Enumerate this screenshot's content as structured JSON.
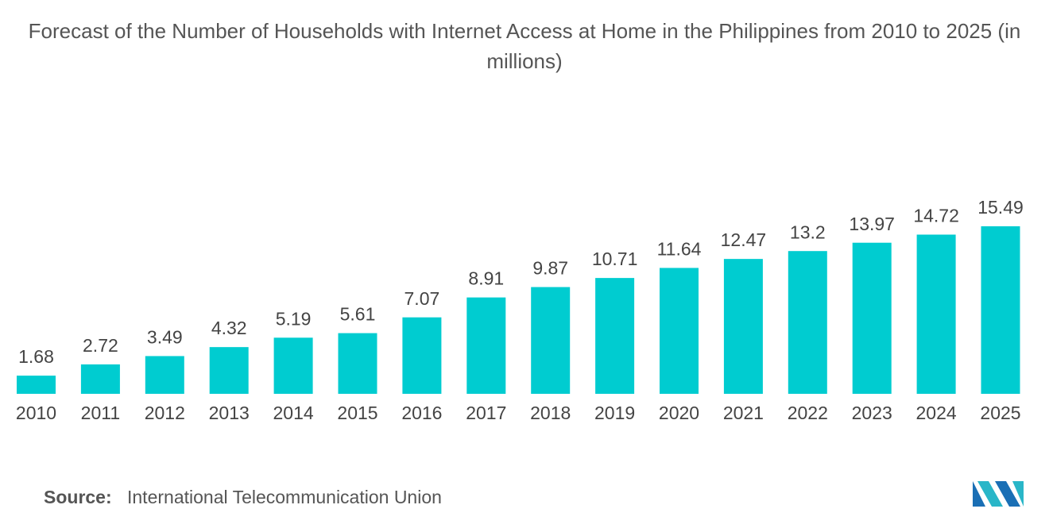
{
  "chart_data": {
    "type": "bar",
    "title": "Forecast of the Number of Households with Internet Access at Home in the Philippines from 2010 to 2025 (in millions)",
    "categories": [
      "2010",
      "2011",
      "2012",
      "2013",
      "2014",
      "2015",
      "2016",
      "2017",
      "2018",
      "2019",
      "2020",
      "2021",
      "2022",
      "2023",
      "2024",
      "2025"
    ],
    "values": [
      1.68,
      2.72,
      3.49,
      4.32,
      5.19,
      5.61,
      7.07,
      8.91,
      9.87,
      10.71,
      11.64,
      12.47,
      13.2,
      13.97,
      14.72,
      15.49
    ],
    "color": "#00ccd0",
    "source_label": "Source:",
    "source": "International Telecommunication Union"
  }
}
